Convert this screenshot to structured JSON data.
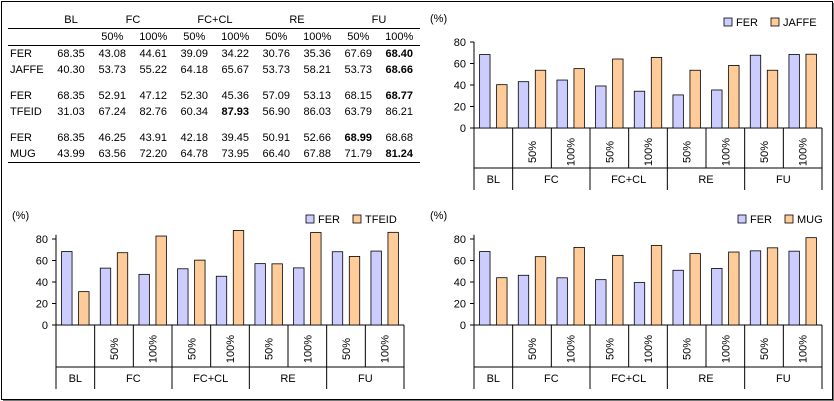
{
  "table": {
    "method_headers": [
      "BL",
      "FC",
      "FC+CL",
      "RE",
      "FU"
    ],
    "sub_headers": [
      "50%",
      "100%",
      "50%",
      "100%",
      "50%",
      "100%",
      "50%",
      "100%"
    ],
    "groups": [
      {
        "rows": [
          {
            "label": "FER",
            "cells": [
              "68.35",
              "43.08",
              "44.61",
              "39.09",
              "34.22",
              "30.76",
              "35.36",
              "67.69",
              "68.40"
            ],
            "bold": [
              8
            ]
          },
          {
            "label": "JAFFE",
            "cells": [
              "40.30",
              "53.73",
              "55.22",
              "64.18",
              "65.67",
              "53.73",
              "58.21",
              "53.73",
              "68.66"
            ],
            "bold": [
              8
            ]
          }
        ]
      },
      {
        "rows": [
          {
            "label": "FER",
            "cells": [
              "68.35",
              "52.91",
              "47.12",
              "52.30",
              "45.36",
              "57.09",
              "53.13",
              "68.15",
              "68.77"
            ],
            "bold": [
              8
            ]
          },
          {
            "label": "TFEID",
            "cells": [
              "31.03",
              "67.24",
              "82.76",
              "60.34",
              "87.93",
              "56.90",
              "86.03",
              "63.79",
              "86.21"
            ],
            "bold": [
              4
            ]
          }
        ]
      },
      {
        "rows": [
          {
            "label": "FER",
            "cells": [
              "68.35",
              "46.25",
              "43.91",
              "42.18",
              "39.45",
              "50.91",
              "52.66",
              "68.99",
              "68.68"
            ],
            "bold": [
              7
            ]
          },
          {
            "label": "MUG",
            "cells": [
              "43.99",
              "63.56",
              "72.20",
              "64.78",
              "73.95",
              "66.40",
              "67.88",
              "71.79",
              "81.24"
            ],
            "bold": [
              8
            ]
          }
        ]
      }
    ]
  },
  "colors": {
    "series_a": "#ccccff",
    "series_b": "#ffcc99",
    "frame": "#000000"
  },
  "chart_data": [
    {
      "type": "bar",
      "ylabel": "(%)",
      "ylim": [
        0,
        80
      ],
      "yticks": [
        0,
        20,
        40,
        60,
        80
      ],
      "legend": "top-right",
      "categories": [
        "",
        "50%",
        "100%",
        "50%",
        "100%",
        "50%",
        "100%",
        "50%",
        "100%"
      ],
      "groups": [
        "BL",
        "FC",
        "FC+CL",
        "RE",
        "FU"
      ],
      "series": [
        {
          "name": "FER",
          "values": [
            68.35,
            43.08,
            44.61,
            39.09,
            34.22,
            30.76,
            35.36,
            67.69,
            68.4
          ]
        },
        {
          "name": "JAFFE",
          "values": [
            40.3,
            53.73,
            55.22,
            64.18,
            65.67,
            53.73,
            58.21,
            53.73,
            68.66
          ]
        }
      ]
    },
    {
      "type": "bar",
      "ylabel": "(%)",
      "ylim": [
        0,
        90
      ],
      "yticks": [
        0,
        20,
        40,
        60,
        80
      ],
      "legend": "top-right",
      "categories": [
        "",
        "50%",
        "100%",
        "50%",
        "100%",
        "50%",
        "100%",
        "50%",
        "100%"
      ],
      "groups": [
        "BL",
        "FC",
        "FC+CL",
        "RE",
        "FU"
      ],
      "series": [
        {
          "name": "FER",
          "values": [
            68.35,
            52.91,
            47.12,
            52.3,
            45.36,
            57.09,
            53.13,
            68.15,
            68.77
          ]
        },
        {
          "name": "TFEID",
          "values": [
            31.03,
            67.24,
            82.76,
            60.34,
            87.93,
            56.9,
            86.03,
            63.79,
            86.21
          ]
        }
      ]
    },
    {
      "type": "bar",
      "ylabel": "(%)",
      "ylim": [
        0,
        85
      ],
      "yticks": [
        0,
        20,
        40,
        60,
        80
      ],
      "legend": "top-right",
      "categories": [
        "",
        "50%",
        "100%",
        "50%",
        "100%",
        "50%",
        "100%",
        "50%",
        "100%"
      ],
      "groups": [
        "BL",
        "FC",
        "FC+CL",
        "RE",
        "FU"
      ],
      "series": [
        {
          "name": "FER",
          "values": [
            68.35,
            46.25,
            43.91,
            42.18,
            39.45,
            50.91,
            52.66,
            68.99,
            68.68
          ]
        },
        {
          "name": "MUG",
          "values": [
            43.99,
            63.56,
            72.2,
            64.78,
            73.95,
            66.4,
            67.88,
            71.79,
            81.24
          ]
        }
      ]
    }
  ]
}
